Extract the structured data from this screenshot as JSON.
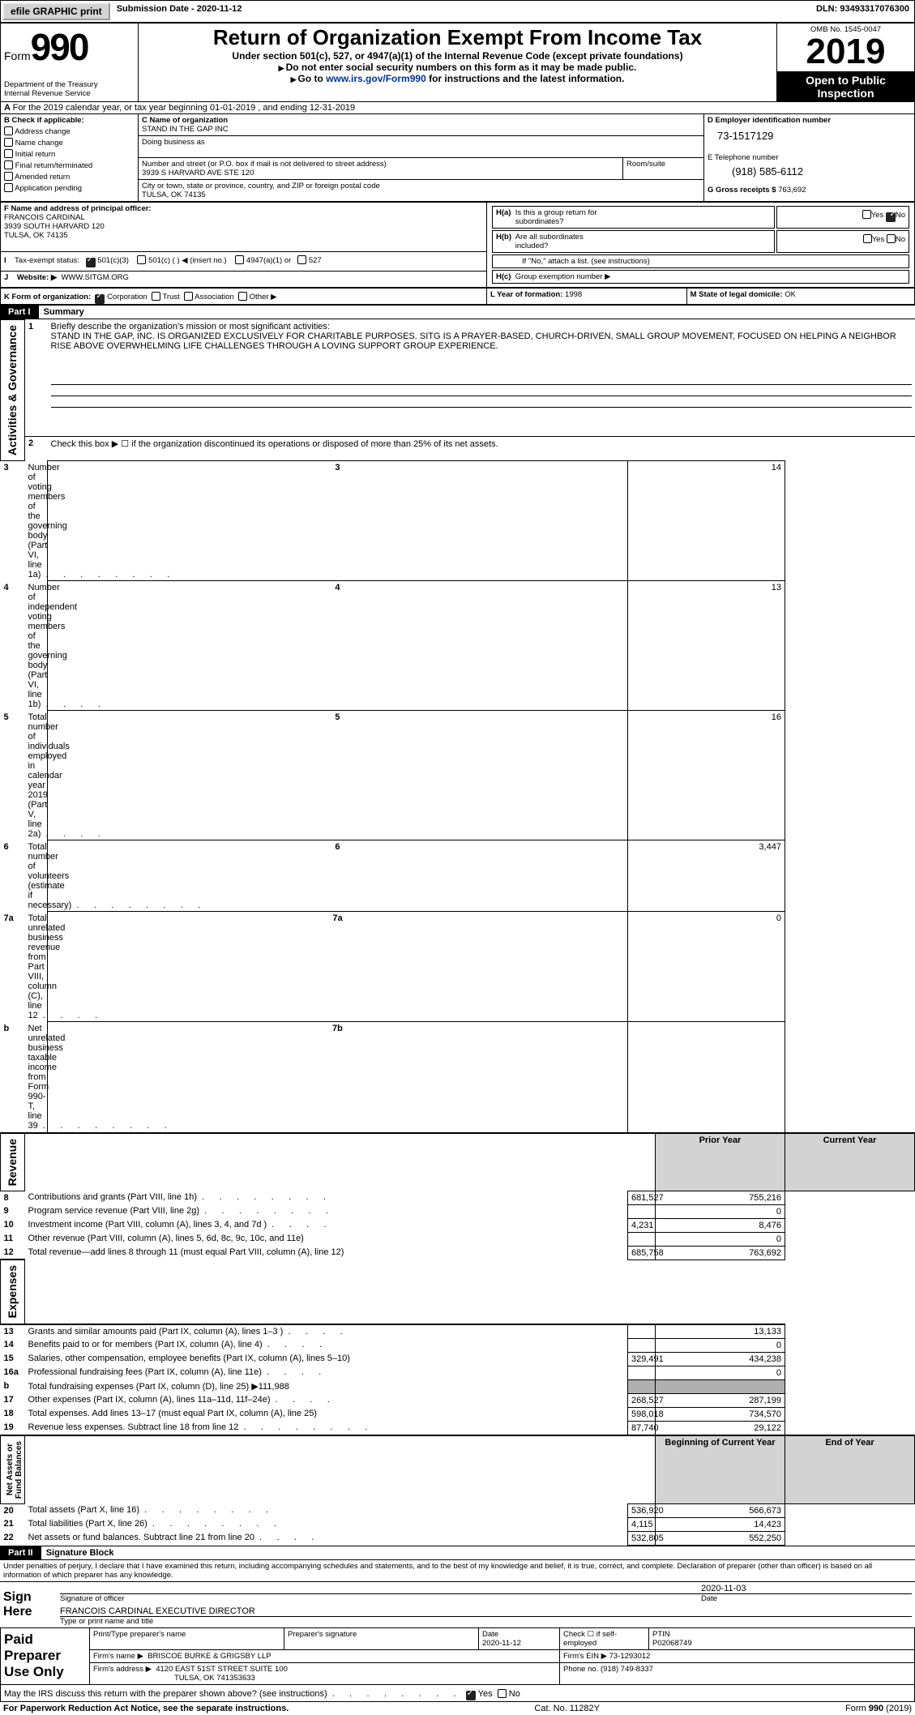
{
  "topbar": {
    "efile_btn": "efile GRAPHIC print",
    "sub_date_lbl": "Submission Date - ",
    "sub_date": "2020-11-12",
    "dln_lbl": "DLN: ",
    "dln": "93493317076300"
  },
  "header": {
    "form_word": "Form",
    "form_num": "990",
    "dept": "Department of the Treasury\nInternal Revenue Service",
    "title": "Return of Organization Exempt From Income Tax",
    "subtitle": "Under section 501(c), 527, or 4947(a)(1) of the Internal Revenue Code (except private foundations)",
    "note1": "Do not enter social security numbers on this form as it may be made public.",
    "note2_pre": "Go to ",
    "note2_link": "www.irs.gov/Form990",
    "note2_post": " for instructions and the latest information.",
    "omb": "OMB No. 1545-0047",
    "year": "2019",
    "openpub": "Open to Public Inspection"
  },
  "period": {
    "line": "For the 2019 calendar year, or tax year beginning 01-01-2019   , and ending 12-31-2019"
  },
  "boxB": {
    "hdr": "B Check if applicable:",
    "items": [
      "Address change",
      "Name change",
      "Initial return",
      "Final return/terminated",
      "Amended return",
      "Application pending"
    ],
    "checked": [
      false,
      false,
      false,
      false,
      false,
      false
    ]
  },
  "boxC": {
    "name_lbl": "C Name of organization",
    "name": "STAND IN THE GAP INC",
    "dba_lbl": "Doing business as",
    "dba": "",
    "addr_lbl": "Number and street (or P.O. box if mail is not delivered to street address)",
    "room_lbl": "Room/suite",
    "addr": "3939 S HARVARD AVE STE 120",
    "city_lbl": "City or town, state or province, country, and ZIP or foreign postal code",
    "city": "TULSA, OK  74135"
  },
  "boxD": {
    "lbl": "D Employer identification number",
    "val": "73-1517129"
  },
  "boxE": {
    "lbl": "E Telephone number",
    "val": "(918) 585-6112"
  },
  "boxG": {
    "lbl": "G Gross receipts $",
    "val": "763,692"
  },
  "boxF": {
    "lbl": "F  Name and address of principal officer:",
    "name": "FRANCOIS CARDINAL",
    "addr1": "3939 SOUTH HARVARD 120",
    "addr2": "TULSA, OK  74135"
  },
  "boxH": {
    "a_lbl": "H(a)  Is this a group return for subordinates?",
    "a_yes": "Yes",
    "a_no": "No",
    "b_lbl": "H(b)  Are all subordinates included?",
    "b_yes": "Yes",
    "b_no": "No",
    "b_note": "If \"No,\" attach a list. (see instructions)",
    "c_lbl": "H(c)  Group exemption number ▶"
  },
  "boxI": {
    "lbl": "Tax-exempt status:",
    "opts": [
      "501(c)(3)",
      "501(c) (  ) ◀ (insert no.)",
      "4947(a)(1) or",
      "527"
    ],
    "checked": [
      true,
      false,
      false,
      false
    ]
  },
  "boxJ": {
    "lbl": "Website: ▶",
    "val": "WWW.SITGM.ORG"
  },
  "boxK": {
    "lbl": "K Form of organization:",
    "opts": [
      "Corporation",
      "Trust",
      "Association",
      "Other ▶"
    ],
    "checked": [
      true,
      false,
      false,
      false
    ]
  },
  "boxL": {
    "lbl": "L Year of formation:",
    "val": "1998"
  },
  "boxM": {
    "lbl": "M State of legal domicile:",
    "val": "OK"
  },
  "part1": {
    "hdr": "Part I",
    "title": "Summary",
    "q1_lbl": "1",
    "q1": "Briefly describe the organization's mission or most significant activities:",
    "q1_text": "STAND IN THE GAP, INC. IS ORGANIZED EXCLUSIVELY FOR CHARITABLE PURPOSES. SITG IS A PRAYER-BASED, CHURCH-DRIVEN, SMALL GROUP MOVEMENT, FOCUSED ON HELPING A NEIGHBOR RISE ABOVE OVERWHELMING LIFE CHALLENGES THROUGH A LOVING SUPPORT GROUP EXPERIENCE.",
    "q2_lbl": "2",
    "q2": "Check this box ▶ ☐  if the organization discontinued its operations or disposed of more than 25% of its net assets.",
    "gov_rows": [
      {
        "n": "3",
        "t": "Number of voting members of the governing body (Part VI, line 1a)",
        "box": "3",
        "v": "14",
        "dots": "dots"
      },
      {
        "n": "4",
        "t": "Number of independent voting members of the governing body (Part VI, line 1b)",
        "box": "4",
        "v": "13",
        "dots": "dotsS"
      },
      {
        "n": "5",
        "t": "Total number of individuals employed in calendar year 2019 (Part V, line 2a)",
        "box": "5",
        "v": "16",
        "dots": "dotsS"
      },
      {
        "n": "6",
        "t": "Total number of volunteers (estimate if necessary)",
        "box": "6",
        "v": "3,447",
        "dots": "dots"
      },
      {
        "n": "7a",
        "t": "Total unrelated business revenue from Part VIII, column (C), line 12",
        "box": "7a",
        "v": "0",
        "dots": "dotsS"
      },
      {
        "n": "b",
        "t": "Net unrelated business taxable income from Form 990-T, line 39",
        "box": "7b",
        "v": "",
        "dots": "dots"
      }
    ],
    "rev_hdr_prior": "Prior Year",
    "rev_hdr_curr": "Current Year",
    "rev_rows": [
      {
        "n": "8",
        "t": "Contributions and grants (Part VIII, line 1h)",
        "p": "681,527",
        "c": "755,216",
        "dots": "dots"
      },
      {
        "n": "9",
        "t": "Program service revenue (Part VIII, line 2g)",
        "p": "",
        "c": "0",
        "dots": "dots"
      },
      {
        "n": "10",
        "t": "Investment income (Part VIII, column (A), lines 3, 4, and 7d )",
        "p": "4,231",
        "c": "8,476",
        "dots": "dotsS"
      },
      {
        "n": "11",
        "t": "Other revenue (Part VIII, column (A), lines 5, 6d, 8c, 9c, 10c, and 11e)",
        "p": "",
        "c": "0",
        "dots": ""
      },
      {
        "n": "12",
        "t": "Total revenue—add lines 8 through 11 (must equal Part VIII, column (A), line 12)",
        "p": "685,758",
        "c": "763,692",
        "dots": ""
      }
    ],
    "exp_rows": [
      {
        "n": "13",
        "t": "Grants and similar amounts paid (Part IX, column (A), lines 1–3 )",
        "p": "",
        "c": "13,133",
        "dots": "dotsS"
      },
      {
        "n": "14",
        "t": "Benefits paid to or for members (Part IX, column (A), line 4)",
        "p": "",
        "c": "0",
        "dots": "dotsS"
      },
      {
        "n": "15",
        "t": "Salaries, other compensation, employee benefits (Part IX, column (A), lines 5–10)",
        "p": "329,491",
        "c": "434,238",
        "dots": ""
      },
      {
        "n": "16a",
        "t": "Professional fundraising fees (Part IX, column (A), line 11e)",
        "p": "",
        "c": "0",
        "dots": "dotsS"
      },
      {
        "n": "b",
        "t": "Total fundraising expenses (Part IX, column (D), line 25) ▶111,988",
        "p": "SHADE",
        "c": "SHADE",
        "dots": ""
      },
      {
        "n": "17",
        "t": "Other expenses (Part IX, column (A), lines 11a–11d, 11f–24e)",
        "p": "268,527",
        "c": "287,199",
        "dots": "dotsS"
      },
      {
        "n": "18",
        "t": "Total expenses. Add lines 13–17 (must equal Part IX, column (A), line 25)",
        "p": "598,018",
        "c": "734,570",
        "dots": ""
      },
      {
        "n": "19",
        "t": "Revenue less expenses. Subtract line 18 from line 12",
        "p": "87,740",
        "c": "29,122",
        "dots": "dots"
      }
    ],
    "na_hdr_beg": "Beginning of Current Year",
    "na_hdr_end": "End of Year",
    "na_rows": [
      {
        "n": "20",
        "t": "Total assets (Part X, line 16)",
        "p": "536,920",
        "c": "566,673",
        "dots": "dots"
      },
      {
        "n": "21",
        "t": "Total liabilities (Part X, line 26)",
        "p": "4,115",
        "c": "14,423",
        "dots": "dots"
      },
      {
        "n": "22",
        "t": "Net assets or fund balances. Subtract line 21 from line 20",
        "p": "532,805",
        "c": "552,250",
        "dots": "dotsS"
      }
    ],
    "rot_labels": [
      "Activities & Governance",
      "Revenue",
      "Expenses",
      "Net Assets or\nFund Balances"
    ]
  },
  "part2": {
    "hdr": "Part II",
    "title": "Signature Block",
    "decl": "Under penalties of perjury, I declare that I have examined this return, including accompanying schedules and statements, and to the best of my knowledge and belief, it is true, correct, and complete. Declaration of preparer (other than officer) is based on all information of which preparer has any knowledge.",
    "sign_here": "Sign Here",
    "sig_officer": "Signature of officer",
    "sig_date_lbl": "Date",
    "sig_date": "2020-11-03",
    "sig_name": "FRANCOIS CARDINAL EXECUTIVE DIRECTOR",
    "sig_name_lbl": "Type or print name and title",
    "paid": "Paid Preparer Use Only",
    "prep_name_lbl": "Print/Type preparer's name",
    "prep_sig_lbl": "Preparer's signature",
    "prep_date_lbl": "Date",
    "prep_date": "2020-11-12",
    "self_emp": "Check ☐ if self-employed",
    "ptin_lbl": "PTIN",
    "ptin": "P02068749",
    "firm_name_lbl": "Firm's name    ▶",
    "firm_name": "BRISCOE BURKE & GRIGSBY LLP",
    "firm_ein_lbl": "Firm's EIN ▶",
    "firm_ein": "73-1293012",
    "firm_addr_lbl": "Firm's address ▶",
    "firm_addr1": "4120 EAST 51ST STREET SUITE 100",
    "firm_addr2": "TULSA, OK  741353633",
    "phone_lbl": "Phone no.",
    "phone": "(918) 749-8337",
    "discuss": "May the IRS discuss this return with the preparer shown above? (see instructions)",
    "discuss_yes": "Yes",
    "discuss_no": "No"
  },
  "footer": {
    "pra": "For Paperwork Reduction Act Notice, see the separate instructions.",
    "cat": "Cat. No. 11282Y",
    "form": "Form 990 (2019)"
  },
  "colors": {
    "shade": "#b0b0b0",
    "hdrshade": "#d3d3d3",
    "link": "#003399"
  }
}
